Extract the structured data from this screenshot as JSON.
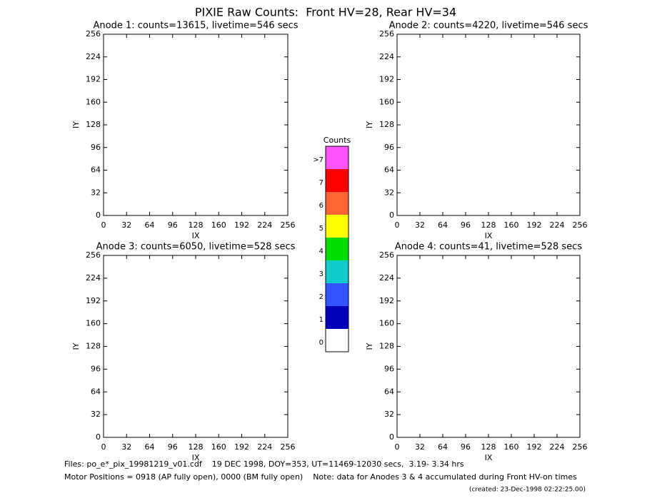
{
  "title": "PIXIE Raw Counts:  Front HV=28, Rear HV=34",
  "panels": [
    {
      "title": "Anode 1: counts=13615, livetime=546 secs",
      "xlabel": "IX",
      "ylabel": "IY",
      "xlim": [
        0,
        256
      ],
      "ylim": [
        0,
        256
      ],
      "xticks": [
        0,
        32,
        64,
        96,
        128,
        160,
        192,
        224,
        256
      ],
      "yticks": [
        0,
        32,
        64,
        96,
        128,
        160,
        192,
        224,
        256
      ]
    },
    {
      "title": "Anode 2: counts=4220, livetime=546 secs",
      "xlabel": "IX",
      "ylabel": "IY",
      "xlim": [
        0,
        256
      ],
      "ylim": [
        0,
        256
      ],
      "xticks": [
        0,
        32,
        64,
        96,
        128,
        160,
        192,
        224,
        256
      ],
      "yticks": [
        0,
        32,
        64,
        96,
        128,
        160,
        192,
        224,
        256
      ]
    },
    {
      "title": "Anode 3: counts=6050, livetime=528 secs",
      "xlabel": "IX",
      "ylabel": "IY",
      "xlim": [
        0,
        256
      ],
      "ylim": [
        0,
        256
      ],
      "xticks": [
        0,
        32,
        64,
        96,
        128,
        160,
        192,
        224,
        256
      ],
      "yticks": [
        0,
        32,
        64,
        96,
        128,
        160,
        192,
        224,
        256
      ]
    },
    {
      "title": "Anode 4: counts=41, livetime=528 secs",
      "xlabel": "IX",
      "ylabel": "IY",
      "xlim": [
        0,
        256
      ],
      "ylim": [
        0,
        256
      ],
      "xticks": [
        0,
        32,
        64,
        96,
        128,
        160,
        192,
        224,
        256
      ],
      "yticks": [
        0,
        32,
        64,
        96,
        128,
        160,
        192,
        224,
        256
      ]
    }
  ],
  "colorbar": {
    "title": "Counts",
    "levels": [
      {
        "label": ">7",
        "color": "#ff55ff"
      },
      {
        "label": "7",
        "color": "#ff0000"
      },
      {
        "label": "6",
        "color": "#ff6633"
      },
      {
        "label": "5",
        "color": "#ffff00"
      },
      {
        "label": "4",
        "color": "#00dd00"
      },
      {
        "label": "3",
        "color": "#11cccc"
      },
      {
        "label": "2",
        "color": "#3355ff"
      },
      {
        "label": "1",
        "color": "#0000bb"
      },
      {
        "label": "0",
        "color": "#ffffff"
      }
    ]
  },
  "footer": [
    "Files: po_e*_pix_19981219_v01.cdf    19 DEC 1998, DOY=353, UT=11469-12030 secs,  3.19- 3.34 hrs",
    "Motor Positions = 0918 (AP fully open), 0000 (BM fully open)    Note: data for Anodes 3 & 4 accumulated during Front HV-on times",
    "(created: 23-Dec-1998 02:22:25.00)"
  ]
}
